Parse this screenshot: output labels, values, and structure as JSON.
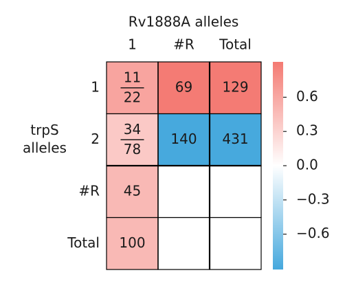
{
  "chart_data": {
    "type": "heatmap",
    "title": "Rv1888A alleles",
    "columns": [
      "1",
      "#R",
      "Total"
    ],
    "rows": [
      "1",
      "2",
      "#R",
      "Total"
    ],
    "ylabel": "trpS alleles",
    "values": [
      [
        0.62,
        0.9,
        0.9
      ],
      [
        0.37,
        -0.9,
        -0.9
      ],
      [
        0.48,
        null,
        null
      ],
      [
        0.48,
        null,
        null
      ]
    ],
    "cell_labels": [
      [
        {
          "num": 11,
          "den": 22
        },
        69,
        129
      ],
      [
        {
          "num": 34,
          "den": 78
        },
        140,
        431
      ],
      [
        45,
        null,
        null
      ],
      [
        100,
        null,
        null
      ]
    ],
    "cmap": [
      "#45a8dd",
      "#ffffff",
      "#f47a72"
    ],
    "clim": [
      -0.91,
      0.91
    ],
    "cticks": [
      {
        "value": 0.6,
        "label": "0.6"
      },
      {
        "value": 0.3,
        "label": "0.3"
      },
      {
        "value": 0,
        "label": "0.0"
      },
      {
        "value": -0.3,
        "label": "−0.3"
      },
      {
        "value": -0.6,
        "label": "−0.6"
      }
    ]
  }
}
